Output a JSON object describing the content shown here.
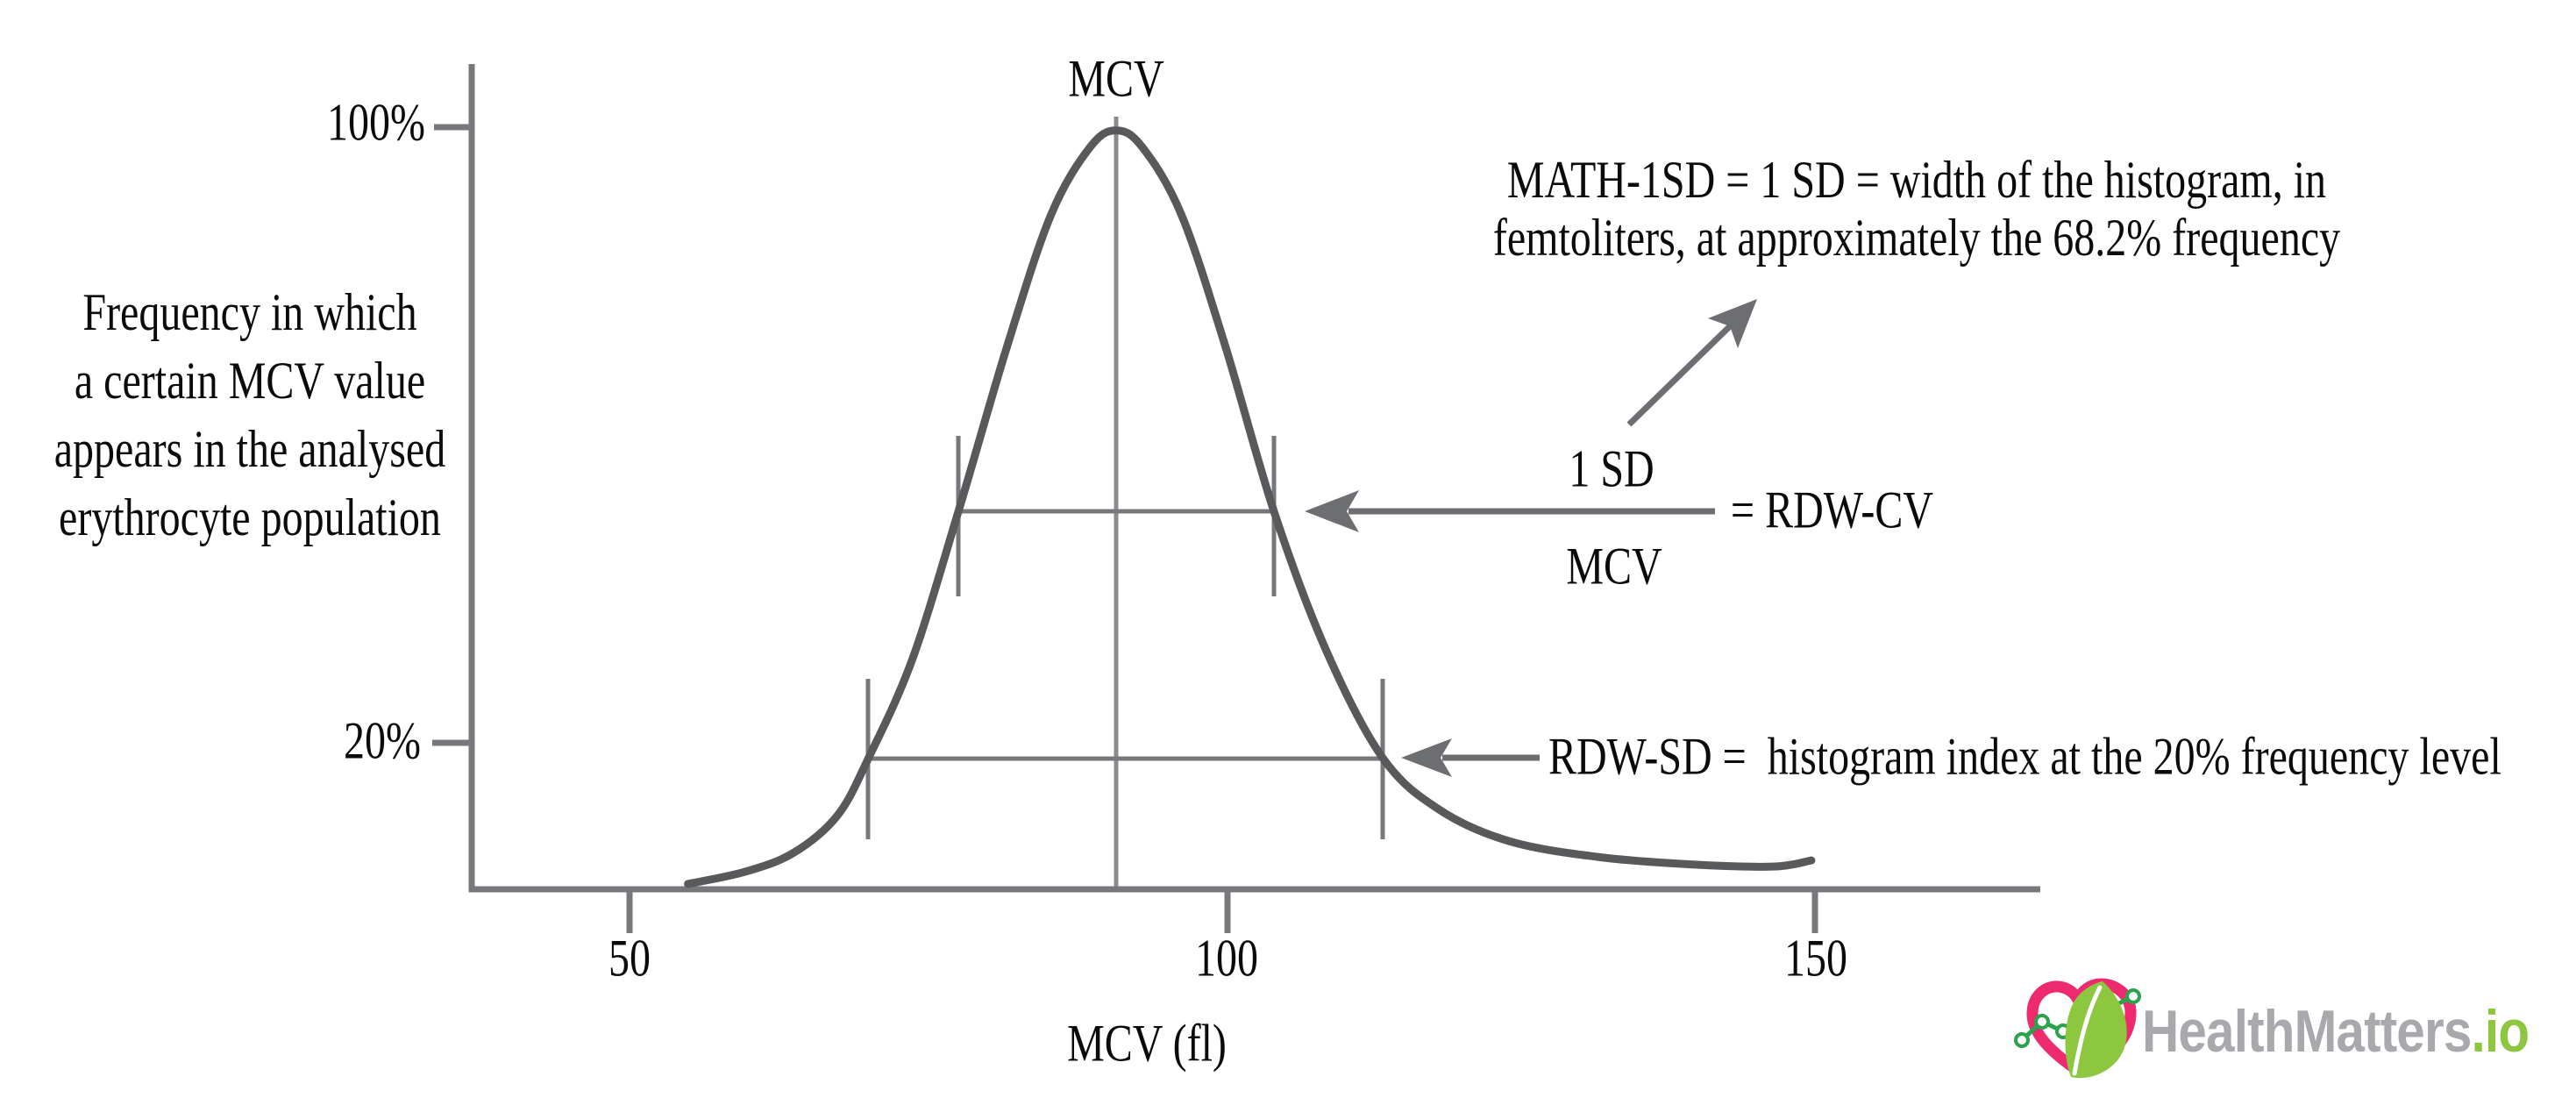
{
  "page": {
    "background": "#ffffff",
    "description": "Diagram explaining RDW-CV and RDW-SD derivation from the MCV frequency histogram"
  },
  "colors": {
    "curve": "#58595b",
    "axis": "#77787b",
    "centerline": "#8a8b8d",
    "arrow": "#6d6e71",
    "text": "#0b0b0b",
    "logo_pink": "#ed2a6e",
    "logo_green": "#8dc63f",
    "logo_line_green": "#2aa34c",
    "logo_gray": "#a7a9ac"
  },
  "labels": {
    "y_100": "100%",
    "y_20": "20%",
    "x_50": "50",
    "x_100": "100",
    "x_150": "150",
    "x_axis_title": "MCV (fl)",
    "peak": "MCV",
    "fraction_numerator": "1 SD",
    "fraction_denominator": "MCV",
    "rdw_cv_result": "= RDW-CV",
    "rdw_sd_line": "RDW-SD =  histogram index at the 20% frequency level"
  },
  "y_axis_label_lines": [
    "Frequency in which",
    "a certain MCV value",
    "appears in the analysed",
    "erythrocyte population"
  ],
  "sd_note_lines": [
    "MATH-1SD = 1 SD = width of the histogram, in",
    "femtoliters, at approximately the 68.2% frequency"
  ],
  "logo": {
    "brand_gray": "HealthMatters",
    "brand_green": ".io"
  },
  "chart_data": {
    "type": "line",
    "title": "",
    "xlabel": "MCV (fl)",
    "ylabel": "Frequency in which a certain MCV value appears in the analysed erythrocyte population",
    "x_ticks": [
      50,
      100,
      150
    ],
    "y_tick_labels": [
      "100%",
      "20%"
    ],
    "y_ticks_pct": [
      100,
      20
    ],
    "xlim": [
      37,
      169
    ],
    "ylim": [
      0,
      105
    ],
    "grid": false,
    "legend": "none",
    "peak_annotation": "MCV",
    "peak_x_fl": 91,
    "annotations": [
      "MATH-1SD = 1 SD = width of the histogram, in femtoliters, at approximately the 68.2% frequency",
      "1 SD / MCV = RDW-CV",
      "RDW-SD = histogram index at the 20% frequency level"
    ],
    "sd_width_line": {
      "x_from_fl": 77.8,
      "x_to_fl": 104.4
    },
    "pct20_width_line": {
      "x_from_fl": 70.2,
      "x_to_fl": 113.6
    },
    "curve": {
      "name": "MCV frequency histogram (bell curve)",
      "points_fl_pct": [
        [
          55.0,
          0.7
        ],
        [
          59.8,
          2.3
        ],
        [
          63.9,
          4.8
        ],
        [
          67.6,
          9.7
        ],
        [
          70.2,
          17.2
        ],
        [
          73.9,
          30.2
        ],
        [
          77.8,
          49.7
        ],
        [
          81.9,
          71.4
        ],
        [
          85.6,
          88.7
        ],
        [
          88.9,
          97.6
        ],
        [
          91.1,
          99.8
        ],
        [
          93.3,
          97.6
        ],
        [
          96.6,
          88.7
        ],
        [
          100.3,
          71.4
        ],
        [
          104.4,
          49.7
        ],
        [
          108.8,
          31.4
        ],
        [
          113.6,
          17.2
        ],
        [
          118.4,
          10.4
        ],
        [
          124.3,
          6.3
        ],
        [
          132.0,
          4.2
        ],
        [
          140.4,
          3.2
        ],
        [
          146.7,
          3.0
        ],
        [
          149.7,
          3.8
        ]
      ]
    }
  }
}
